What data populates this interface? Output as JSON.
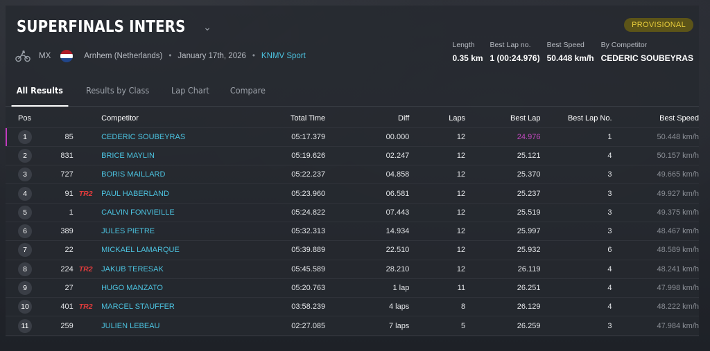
{
  "event": {
    "title": "SUPERFINALS INTERS",
    "status": "PROVISIONAL",
    "discipline": "MX",
    "location": "Arnhem (Netherlands)",
    "date": "January 17th, 2026",
    "organizer": "KNMV Sport",
    "flag_colors": [
      "#ae1c28",
      "#ffffff",
      "#21468b"
    ]
  },
  "stats": [
    {
      "label": "Length",
      "value": "0.35 km"
    },
    {
      "label": "Best Lap no.",
      "value": "1 (00:24.976)"
    },
    {
      "label": "Best Speed",
      "value": "50.448 km/h"
    },
    {
      "label": "By Competitor",
      "value": "CEDERIC SOUBEYRAS"
    }
  ],
  "tabs": [
    {
      "label": "All Results",
      "active": true
    },
    {
      "label": "Results by Class",
      "active": false
    },
    {
      "label": "Lap Chart",
      "active": false
    },
    {
      "label": "Compare",
      "active": false
    }
  ],
  "table": {
    "headers": {
      "pos": "Pos",
      "competitor": "Competitor",
      "total_time": "Total Time",
      "diff": "Diff",
      "laps": "Laps",
      "best_lap": "Best Lap",
      "best_lap_no": "Best Lap No.",
      "best_speed": "Best Speed"
    },
    "rows": [
      {
        "pos": "1",
        "num": "85",
        "tag": "",
        "name": "CEDERIC SOUBEYRAS",
        "time": "05:17.379",
        "diff": "00.000",
        "laps": "12",
        "best": "24.976",
        "best_no": "1",
        "speed": "50.448 km/h"
      },
      {
        "pos": "2",
        "num": "831",
        "tag": "",
        "name": "BRICE MAYLIN",
        "time": "05:19.626",
        "diff": "02.247",
        "laps": "12",
        "best": "25.121",
        "best_no": "4",
        "speed": "50.157 km/h"
      },
      {
        "pos": "3",
        "num": "727",
        "tag": "",
        "name": "BORIS MAILLARD",
        "time": "05:22.237",
        "diff": "04.858",
        "laps": "12",
        "best": "25.370",
        "best_no": "3",
        "speed": "49.665 km/h"
      },
      {
        "pos": "4",
        "num": "91",
        "tag": "TR2",
        "name": "PAUL HABERLAND",
        "time": "05:23.960",
        "diff": "06.581",
        "laps": "12",
        "best": "25.237",
        "best_no": "3",
        "speed": "49.927 km/h"
      },
      {
        "pos": "5",
        "num": "1",
        "tag": "",
        "name": "CALVIN FONVIEILLE",
        "time": "05:24.822",
        "diff": "07.443",
        "laps": "12",
        "best": "25.519",
        "best_no": "3",
        "speed": "49.375 km/h"
      },
      {
        "pos": "6",
        "num": "389",
        "tag": "",
        "name": "JULES PIETRE",
        "time": "05:32.313",
        "diff": "14.934",
        "laps": "12",
        "best": "25.997",
        "best_no": "3",
        "speed": "48.467 km/h"
      },
      {
        "pos": "7",
        "num": "22",
        "tag": "",
        "name": "MICKAEL LAMARQUE",
        "time": "05:39.889",
        "diff": "22.510",
        "laps": "12",
        "best": "25.932",
        "best_no": "6",
        "speed": "48.589 km/h"
      },
      {
        "pos": "8",
        "num": "224",
        "tag": "TR2",
        "name": "JAKUB TERESAK",
        "time": "05:45.589",
        "diff": "28.210",
        "laps": "12",
        "best": "26.119",
        "best_no": "4",
        "speed": "48.241 km/h"
      },
      {
        "pos": "9",
        "num": "27",
        "tag": "",
        "name": "HUGO MANZATO",
        "time": "05:20.763",
        "diff": "1 lap",
        "laps": "11",
        "best": "26.251",
        "best_no": "4",
        "speed": "47.998 km/h"
      },
      {
        "pos": "10",
        "num": "401",
        "tag": "TR2",
        "name": "MARCEL STAUFFER",
        "time": "03:58.239",
        "diff": "4 laps",
        "laps": "8",
        "best": "26.129",
        "best_no": "4",
        "speed": "48.222 km/h"
      },
      {
        "pos": "11",
        "num": "259",
        "tag": "",
        "name": "JULIEN LEBEAU",
        "time": "02:27.085",
        "diff": "7 laps",
        "laps": "5",
        "best": "26.259",
        "best_no": "3",
        "speed": "47.984 km/h"
      }
    ]
  },
  "colors": {
    "accent_link": "#4cc3e0",
    "best_lap_highlight": "#c349c0",
    "badge_bg": "#5c5418",
    "badge_text": "#e8cd3b",
    "tag": "#e23c3c"
  }
}
